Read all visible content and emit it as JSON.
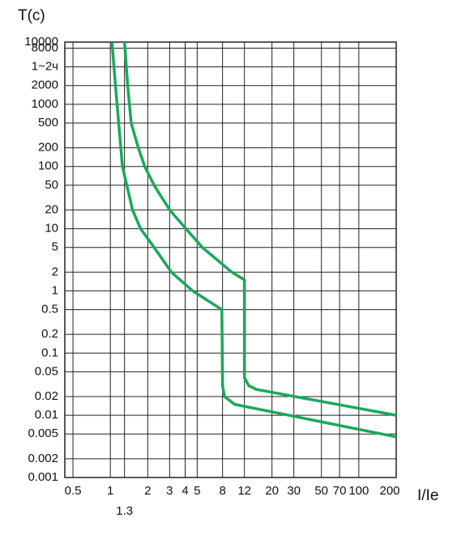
{
  "chart_data": {
    "type": "line",
    "y_label": "T(c)",
    "x_label": "I/Ie",
    "log_x": true,
    "log_y": true,
    "grid": true,
    "xlim": [
      0.43,
      200
    ],
    "ylim": [
      0.001,
      10000
    ],
    "xticks": [
      0.5,
      1,
      2,
      3,
      4,
      5,
      8,
      12,
      20,
      30,
      50,
      70,
      100,
      200
    ],
    "xticks_lower": [
      1.3
    ],
    "yticks": [
      0.001,
      0.002,
      0.005,
      0.01,
      0.02,
      0.05,
      0.1,
      0.2,
      0.5,
      1,
      2,
      5,
      10,
      20,
      50,
      100,
      200,
      500,
      1000,
      2000,
      {
        "value": 4000,
        "label": "1~2ч"
      },
      8000,
      10000
    ],
    "series": [
      {
        "color": "#1aa85a",
        "x": [
          1.03,
          1.1,
          1.25,
          1.51,
          1.75,
          2.25,
          3.1,
          4.6,
          7.9,
          8,
          8.3,
          10,
          200
        ],
        "values": [
          10000,
          2000,
          100,
          20,
          10,
          5,
          2,
          1,
          0.5,
          0.03,
          0.02,
          0.015,
          0.0045
        ]
      },
      {
        "color": "#1aa85a",
        "x": [
          1.3,
          1.38,
          1.47,
          1.68,
          1.89,
          2.25,
          3,
          4.06,
          5.5,
          9.5,
          12,
          12,
          13,
          15,
          200
        ],
        "values": [
          10000,
          2000,
          500,
          200,
          100,
          50,
          20,
          10,
          5,
          2,
          1.5,
          0.04,
          0.03,
          0.026,
          0.01
        ]
      }
    ]
  }
}
